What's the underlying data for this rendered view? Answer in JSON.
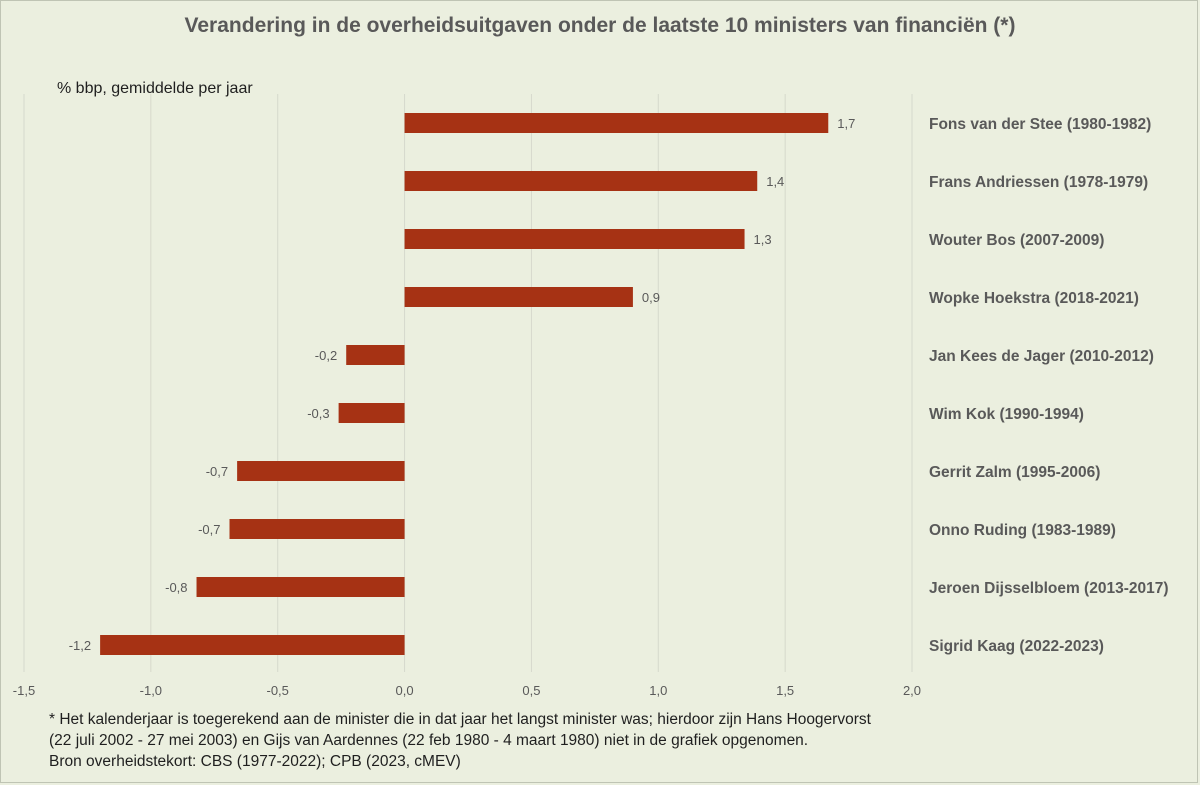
{
  "chart_data": {
    "type": "bar",
    "orientation": "horizontal",
    "title": "Verandering in de overheidsuitgaven  onder de laatste 10 ministers van financiën (*)",
    "ylabel": "% bbp, gemiddelde per jaar",
    "categories": [
      "Fons van der Stee (1980-1982)",
      "Frans Andriessen (1978-1979)",
      "Wouter Bos (2007-2009)",
      "Wopke Hoekstra (2018-2021)",
      "Jan Kees de Jager (2010-2012)",
      "Wim Kok (1990-1994)",
      "Gerrit Zalm (1995-2006)",
      "Onno Ruding (1983-1989)",
      "Jeroen Dijsselbloem (2013-2017)",
      "Sigrid Kaag (2022-2023)"
    ],
    "values": [
      1.67,
      1.39,
      1.34,
      0.9,
      -0.23,
      -0.26,
      -0.66,
      -0.69,
      -0.82,
      -1.2
    ],
    "data_labels": [
      "1,7",
      "1,4",
      "1,3",
      "0,9",
      "-0,2",
      "-0,3",
      "-0,7",
      "-0,7",
      "-0,8",
      "-1,2"
    ],
    "xlim": [
      -1.5,
      2.0
    ],
    "xticks": [
      -1.5,
      -1.0,
      -0.5,
      0.0,
      0.5,
      1.0,
      1.5,
      2.0
    ],
    "xtick_labels": [
      "-1,5",
      "-1,0",
      "-0,5",
      "0,0",
      "0,5",
      "1,0",
      "1,5",
      "2,0"
    ],
    "grid": true,
    "bar_color": "#a63214",
    "legend": "none"
  },
  "footnote": {
    "lines": [
      "* Het kalenderjaar is toegerekend aan de minister die in dat jaar het langst minister was; hierdoor zijn Hans Hoogervorst",
      "(22 juli 2002 - 27 mei 2003) en Gijs van Aardennes (22 feb 1980 - 4 maart 1980) niet in de grafiek opgenomen.",
      "Bron overheidstekort: CBS (1977-2022); CPB (2023, cMEV)"
    ]
  },
  "colors": {
    "background": "#ebefdf",
    "gridline": "#d6d9cc",
    "text": "#595959"
  }
}
